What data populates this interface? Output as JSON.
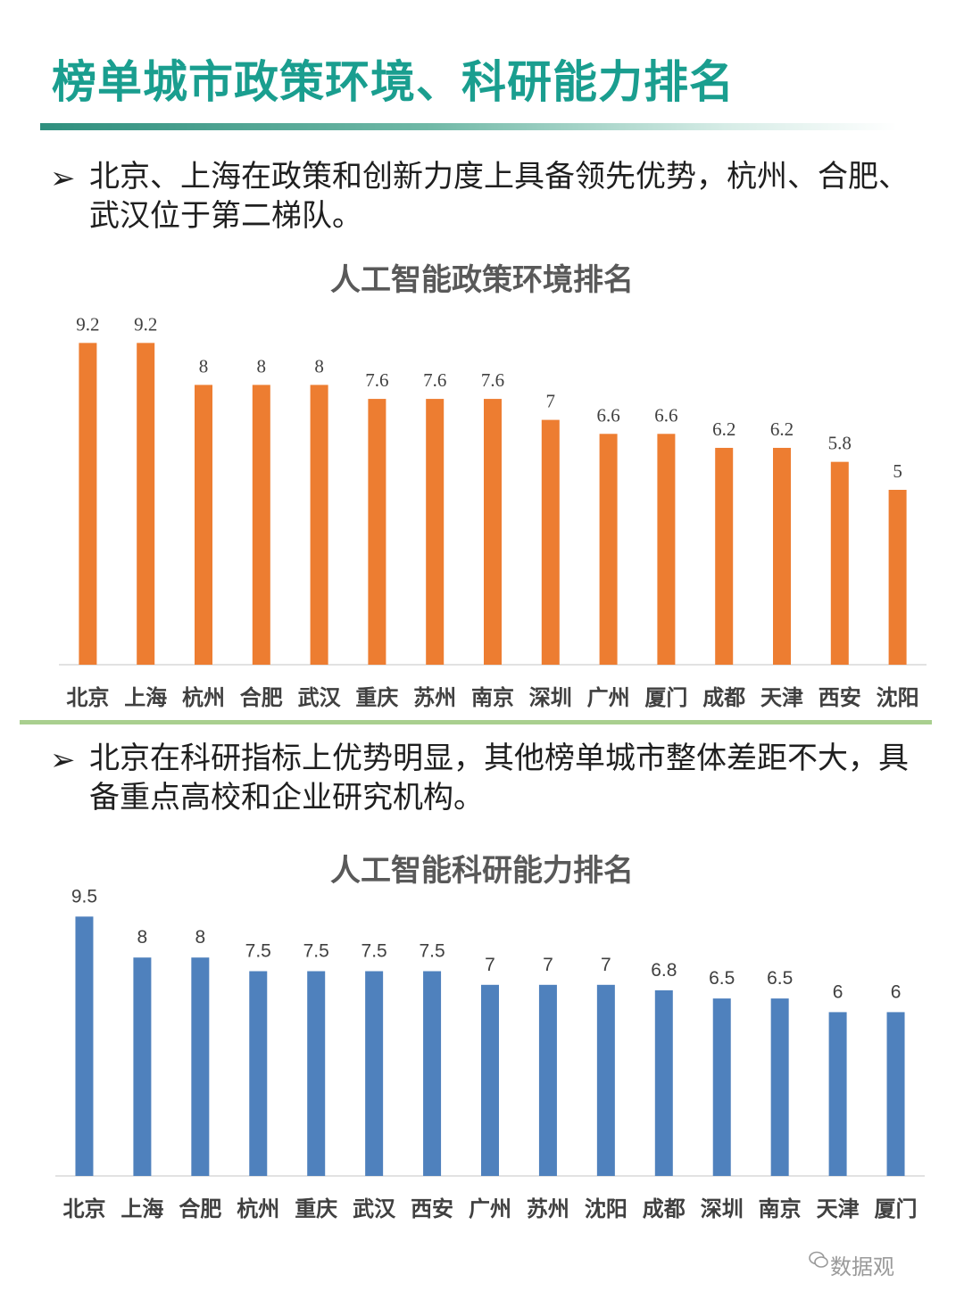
{
  "page": {
    "title": "榜单城市政策环境、科研能力排名",
    "watermark": "数据观",
    "colors": {
      "title": "#1a9e8f",
      "policy_bar": "#ed7d31",
      "research_bar": "#4f81bd"
    }
  },
  "section1": {
    "bullet": "➢",
    "text": "北京、上海在政策和创新力度上具备领先优势，杭州、合肥、武汉位于第二梯队。"
  },
  "section2": {
    "bullet": "➢",
    "text": "北京在科研指标上优势明显，其他榜单城市整体差距不大，具备重点高校和企业研究机构。"
  },
  "chart_data": [
    {
      "type": "bar",
      "title": "人工智能政策环境排名",
      "categories": [
        "北京",
        "上海",
        "杭州",
        "合肥",
        "武汉",
        "重庆",
        "苏州",
        "南京",
        "深圳",
        "广州",
        "厦门",
        "成都",
        "天津",
        "西安",
        "沈阳"
      ],
      "values": [
        9.2,
        9.2,
        8,
        8,
        8,
        7.6,
        7.6,
        7.6,
        7,
        6.6,
        6.6,
        6.2,
        6.2,
        5.8,
        5
      ],
      "value_labels": [
        "9.2",
        "9.2",
        "8",
        "8",
        "8",
        "7.6",
        "7.6",
        "7.6",
        "7",
        "6.6",
        "6.6",
        "6.2",
        "6.2",
        "5.8",
        "5"
      ],
      "ylim": [
        0,
        10
      ],
      "grid": false,
      "color": "#ed7d31"
    },
    {
      "type": "bar",
      "title": "人工智能科研能力排名",
      "categories": [
        "北京",
        "上海",
        "合肥",
        "杭州",
        "重庆",
        "武汉",
        "西安",
        "广州",
        "苏州",
        "沈阳",
        "成都",
        "深圳",
        "南京",
        "天津",
        "厦门"
      ],
      "values": [
        9.5,
        8,
        8,
        7.5,
        7.5,
        7.5,
        7.5,
        7,
        7,
        7,
        6.8,
        6.5,
        6.5,
        6,
        6
      ],
      "value_labels": [
        "9.5",
        "8",
        "8",
        "7.5",
        "7.5",
        "7.5",
        "7.5",
        "7",
        "7",
        "7",
        "6.8",
        "6.5",
        "6.5",
        "6",
        "6"
      ],
      "ylim": [
        0,
        10
      ],
      "grid": false,
      "color": "#4f81bd"
    }
  ]
}
